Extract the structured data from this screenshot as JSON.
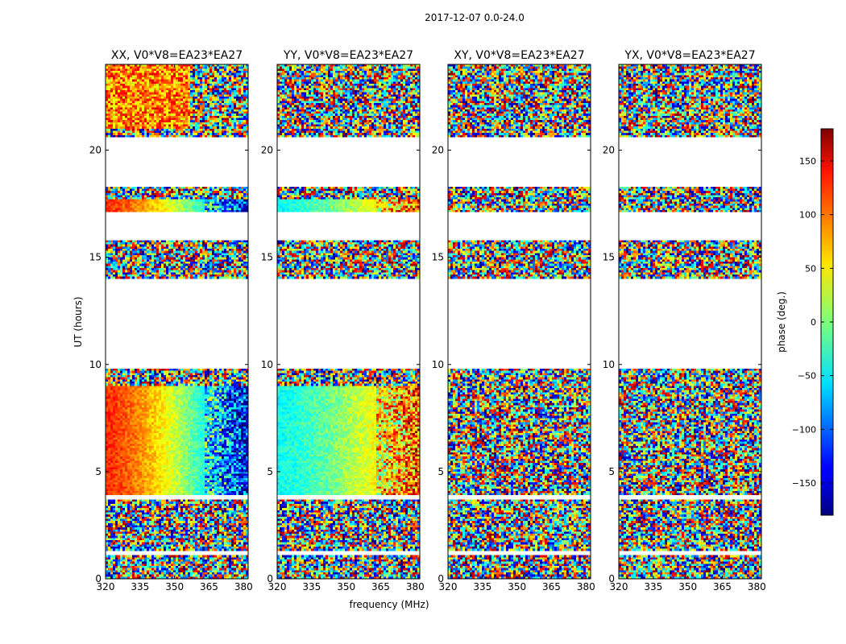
{
  "figure": {
    "suptitle": "2017-12-07 0.0-24.0"
  },
  "chart_data": {
    "type": "heatmap",
    "title": "2017-12-07 0.0-24.0",
    "xlabel": "frequency (MHz)",
    "ylabel": "UT (hours)",
    "xlim": [
      320,
      382
    ],
    "ylim": [
      0,
      24
    ],
    "xticks": [
      "320",
      "335",
      "350",
      "365",
      "380"
    ],
    "xtick_values": [
      320,
      335,
      350,
      365,
      380
    ],
    "yticks": [
      "0",
      "5",
      "10",
      "15",
      "20"
    ],
    "ytick_values": [
      0,
      5,
      10,
      15,
      20
    ],
    "colorbar": {
      "label": "phase (deg.)",
      "range": [
        -180,
        180
      ],
      "colormap": "jet",
      "ticks": [
        "−150",
        "−100",
        "−50",
        "0",
        "50",
        "100",
        "150"
      ],
      "tick_values": [
        -150,
        -100,
        -50,
        0,
        50,
        100,
        150
      ]
    },
    "data_time_ranges_hours": [
      [
        0.0,
        1.1
      ],
      [
        1.3,
        3.7
      ],
      [
        3.9,
        9.8
      ],
      [
        14.0,
        15.8
      ],
      [
        17.1,
        18.3
      ],
      [
        20.6,
        24.0
      ]
    ],
    "panels": [
      {
        "title": "XX, V0*V8=EA23*EA27",
        "pattern": "phase-slope",
        "phase_low_freq_deg": 120,
        "phase_high_freq_deg": -140
      },
      {
        "title": "YY, V0*V8=EA23*EA27",
        "pattern": "phase-slope",
        "phase_low_freq_deg": -40,
        "phase_high_freq_deg": 100
      },
      {
        "title": "XY, V0*V8=EA23*EA27",
        "pattern": "noise"
      },
      {
        "title": "YX, V0*V8=EA23*EA27",
        "pattern": "noise"
      }
    ]
  }
}
